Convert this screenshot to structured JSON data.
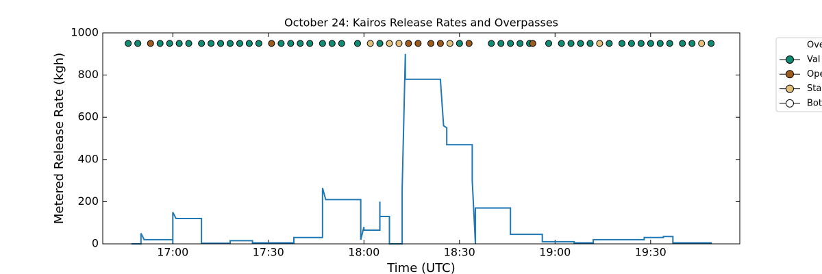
{
  "chart_data": {
    "type": "line",
    "title": "October 24: Kairos Release Rates and Overpasses",
    "xlabel": "Time (UTC)",
    "ylabel": "Metered Release Rate (kgh)",
    "xlim": [
      "16:38",
      "19:58"
    ],
    "xticks": [
      "17:00",
      "17:30",
      "18:00",
      "18:30",
      "19:00",
      "19:30"
    ],
    "ylim": [
      0,
      1000
    ],
    "yticks": [
      0,
      200,
      400,
      600,
      800,
      1000
    ],
    "legend_title": "Ove",
    "legend": "upper right outside",
    "series": [
      {
        "type": "line",
        "color": "#1f77b4",
        "x": [
          "16:47",
          "16:50",
          "16:50",
          "16:51",
          "17:00",
          "17:00",
          "17:00",
          "17:01",
          "17:09",
          "17:09",
          "17:18",
          "17:18",
          "17:25",
          "17:25",
          "17:38",
          "17:38",
          "17:47",
          "17:47",
          "17:48",
          "17:59",
          "17:59",
          "18:00",
          "18:00",
          "18:05",
          "18:05",
          "18:05",
          "18:08",
          "18:08",
          "18:12",
          "18:12",
          "18:13",
          "18:13",
          "18:24",
          "18:25",
          "18:26",
          "18:26",
          "18:34",
          "18:34",
          "18:35",
          "18:35",
          "18:46",
          "18:46",
          "18:56",
          "18:56",
          "19:06",
          "19:06",
          "19:12",
          "19:12",
          "19:28",
          "19:28",
          "19:34",
          "19:34",
          "19:37",
          "19:37",
          "19:49",
          "19:49"
        ],
        "values": [
          0,
          0,
          50,
          20,
          20,
          0,
          150,
          120,
          120,
          3,
          3,
          15,
          15,
          5,
          5,
          30,
          30,
          265,
          210,
          210,
          20,
          80,
          65,
          65,
          200,
          130,
          130,
          0,
          0,
          260,
          900,
          780,
          780,
          560,
          550,
          470,
          470,
          300,
          0,
          170,
          170,
          45,
          45,
          10,
          10,
          5,
          5,
          20,
          20,
          30,
          30,
          35,
          35,
          5,
          5,
          0
        ]
      },
      {
        "type": "scatter",
        "name": "Val",
        "color": "#0f8a73",
        "x": [
          "16:46",
          "16:49",
          "16:56",
          "16:59",
          "17:02",
          "17:05",
          "17:09",
          "17:12",
          "17:15",
          "17:18",
          "17:21",
          "17:24",
          "17:27",
          "17:34",
          "17:37",
          "17:40",
          "17:43",
          "17:47",
          "17:50",
          "17:53",
          "17:58",
          "18:05",
          "18:30",
          "18:40",
          "18:43",
          "18:46",
          "18:49",
          "18:52",
          "18:58",
          "19:02",
          "19:05",
          "19:08",
          "19:11",
          "19:17",
          "19:21",
          "19:24",
          "19:27",
          "19:30",
          "19:33",
          "19:36",
          "19:40",
          "19:43",
          "19:49"
        ],
        "values": [
          950,
          950,
          950,
          950,
          950,
          950,
          950,
          950,
          950,
          950,
          950,
          950,
          950,
          950,
          950,
          950,
          950,
          950,
          950,
          950,
          950,
          950,
          950,
          950,
          950,
          950,
          950,
          950,
          950,
          950,
          950,
          950,
          950,
          950,
          950,
          950,
          950,
          950,
          950,
          950,
          950,
          950,
          950
        ]
      },
      {
        "type": "scatter",
        "name": "Ope",
        "color": "#9c5a1c",
        "x": [
          "16:53",
          "17:31",
          "18:14",
          "18:17",
          "18:21",
          "18:24",
          "18:33",
          "18:53"
        ],
        "values": [
          950,
          950,
          950,
          950,
          950,
          950,
          950,
          950
        ]
      },
      {
        "type": "scatter",
        "name": "Sta",
        "color": "#e3c07a",
        "x": [
          "18:02",
          "18:08",
          "18:11",
          "18:27",
          "19:14",
          "19:46"
        ],
        "values": [
          950,
          950,
          950,
          950,
          950,
          950
        ]
      },
      {
        "type": "scatter",
        "name": "Bot",
        "color": "#ffffff",
        "x": [],
        "values": []
      }
    ]
  }
}
